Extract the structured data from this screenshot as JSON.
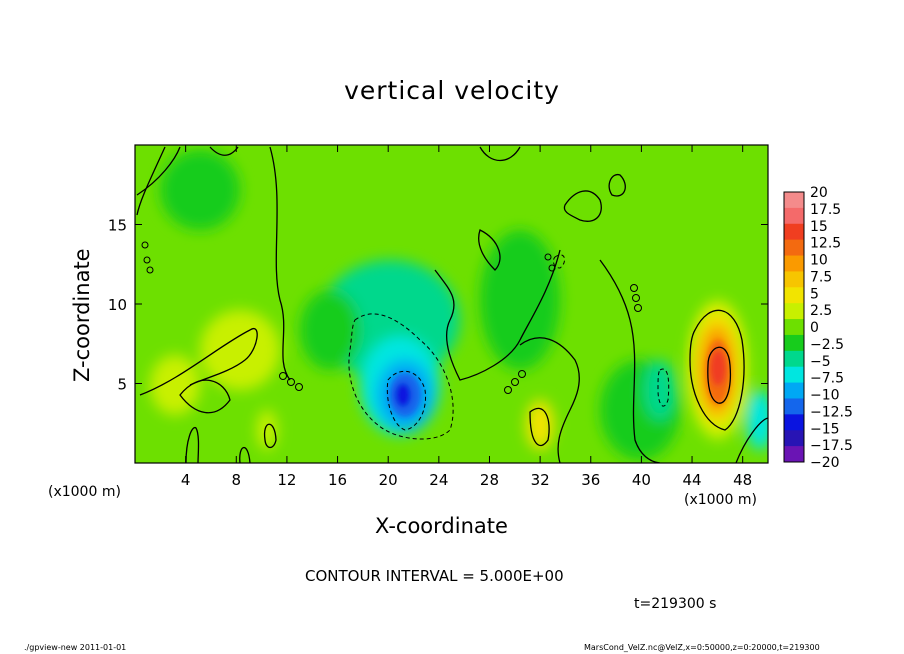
{
  "chart_data": {
    "type": "heatmap",
    "title": "vertical velocity",
    "xlabel": "X-coordinate",
    "ylabel": "Z-coordinate",
    "x_unit_label": "(x1000 m)",
    "xlim": [
      0,
      50
    ],
    "ylim": [
      0,
      20
    ],
    "x_ticks": [
      4,
      8,
      12,
      16,
      20,
      24,
      28,
      32,
      36,
      40,
      44,
      48
    ],
    "y_ticks": [
      5,
      10,
      15
    ],
    "colorbar": {
      "levels": [
        20,
        17.5,
        15,
        12.5,
        10,
        7.5,
        5,
        2.5,
        0,
        -2.5,
        -5,
        -7.5,
        -10,
        -12.5,
        -15,
        -17.5,
        -20
      ],
      "colors": [
        "#f48b8b",
        "#f46a6a",
        "#f03e20",
        "#f36a10",
        "#fa9a00",
        "#f7c500",
        "#f2e400",
        "#c8f000",
        "#6de000",
        "#17cc1c",
        "#00d88c",
        "#00e6e0",
        "#00a8f4",
        "#1466ec",
        "#0a14e0",
        "#2814b4",
        "#6a14b4"
      ]
    },
    "features": [
      {
        "kind": "updraft-max",
        "x": 46,
        "z": 6,
        "value": 17.5
      },
      {
        "kind": "updraft",
        "x": 32.5,
        "z": 2.5,
        "value": 7.5
      },
      {
        "kind": "updraft",
        "x": 8,
        "z": 6,
        "value": 5
      },
      {
        "kind": "downdraft-min",
        "x": 21,
        "z": 4.5,
        "value": -12.5
      },
      {
        "kind": "downdraft",
        "x": 41.5,
        "z": 4.5,
        "value": -5
      }
    ],
    "contour_interval": "CONTOUR INTERVAL = 5.000E+00",
    "time_label": "t=219300 s"
  },
  "footer": {
    "left": "./gpview-new   2011-01-01",
    "right": "MarsCond_VelZ.nc@VelZ,x=0:50000,z=0:20000,t=219300"
  }
}
